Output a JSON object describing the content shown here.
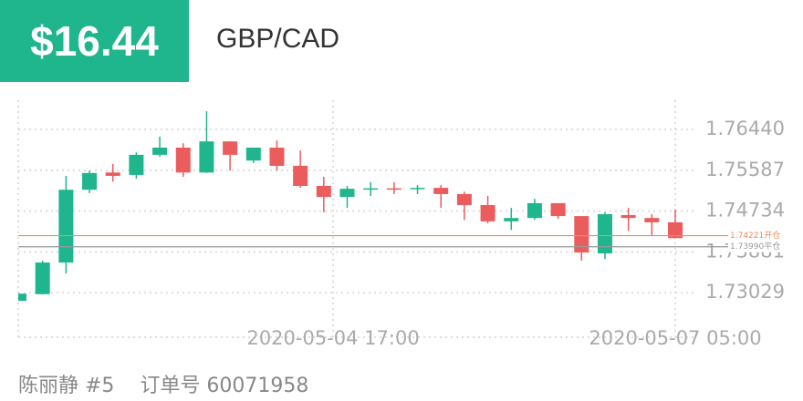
{
  "header": {
    "amount": "$16.44",
    "pair": "GBP/CAD"
  },
  "footer": {
    "trader": "陈丽静 #5",
    "order": "订单号 60071958"
  },
  "chart_data": {
    "type": "candlestick",
    "categories": [
      null,
      null,
      null,
      null,
      null,
      null,
      null,
      null,
      null,
      null,
      null,
      null,
      null,
      null,
      null,
      null,
      null,
      null,
      null,
      null,
      null,
      null,
      null,
      null,
      null,
      null,
      null,
      null,
      null
    ],
    "open": [
      1.7286,
      1.73,
      1.7366,
      1.7518,
      1.7554,
      1.7549,
      1.7591,
      1.7606,
      1.7554,
      1.7619,
      1.7579,
      1.7606,
      1.7568,
      1.7526,
      1.7503,
      1.752,
      1.7521,
      1.752,
      1.7522,
      1.7509,
      1.7486,
      1.7452,
      1.7459,
      1.749,
      1.7463,
      1.7385,
      1.7465,
      1.7459,
      1.745
    ],
    "high": [
      1.7301,
      1.737,
      1.7547,
      1.7558,
      1.7572,
      1.7596,
      1.7629,
      1.7615,
      1.7682,
      1.7619,
      1.7606,
      1.7621,
      1.76,
      1.7545,
      1.7526,
      1.7534,
      1.7534,
      1.7528,
      1.7528,
      1.7514,
      1.7505,
      1.748,
      1.7499,
      1.749,
      1.7463,
      1.7471,
      1.748,
      1.7467,
      1.7477
    ],
    "low": [
      1.7286,
      1.7299,
      1.7343,
      1.7511,
      1.7535,
      1.7541,
      1.7587,
      1.7545,
      1.7553,
      1.7558,
      1.7574,
      1.7558,
      1.7522,
      1.7471,
      1.748,
      1.7505,
      1.7509,
      1.7509,
      1.748,
      1.7455,
      1.7448,
      1.7434,
      1.7455,
      1.7457,
      1.737,
      1.7373,
      1.7432,
      1.7423,
      1.7417
    ],
    "close": [
      1.7301,
      1.7366,
      1.7518,
      1.7553,
      1.7547,
      1.7591,
      1.7606,
      1.7554,
      1.7619,
      1.7591,
      1.7606,
      1.7568,
      1.7526,
      1.7503,
      1.752,
      1.7521,
      1.752,
      1.7522,
      1.7509,
      1.7486,
      1.7452,
      1.7459,
      1.749,
      1.7463,
      1.7387,
      1.7467,
      1.7459,
      1.745,
      1.7417
    ],
    "up_color": "#1fb58d",
    "down_color": "#eb5c5c",
    "ylim": [
      1.721,
      1.7724
    ],
    "yticks": [
      {
        "value": 1.7644,
        "label": "1.76440"
      },
      1.75587,
      1.74734,
      1.73881,
      1.73029
    ],
    "xlim": [
      0,
      28
    ],
    "xticks": [
      {
        "value": 13.4,
        "label": "2020-05-04 17:00"
      },
      {
        "value": 28,
        "label": "2020-05-07 05:00"
      }
    ],
    "grid": true,
    "reference_lines": [
      {
        "value": 1.74221,
        "label": "1.74221开仓",
        "color": "#f08a5d"
      },
      {
        "value": 1.7399,
        "label": "1.73990平仓",
        "color": "#999999"
      }
    ]
  }
}
